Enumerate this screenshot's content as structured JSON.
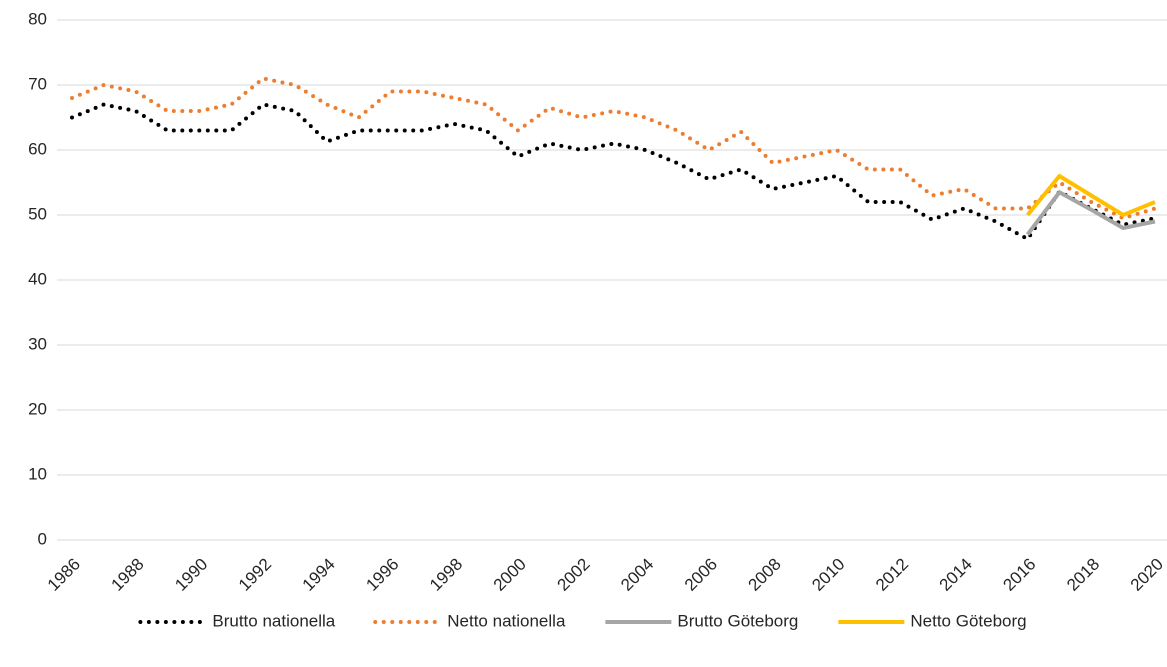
{
  "chart_data": {
    "type": "line",
    "x": [
      1986,
      1987,
      1988,
      1989,
      1990,
      1991,
      1992,
      1993,
      1994,
      1995,
      1996,
      1997,
      1998,
      1999,
      2000,
      2001,
      2002,
      2003,
      2004,
      2005,
      2006,
      2007,
      2008,
      2009,
      2010,
      2011,
      2012,
      2013,
      2014,
      2015,
      2016,
      2017,
      2018,
      2019,
      2020
    ],
    "xlim": [
      1986,
      2020
    ],
    "xticks": [
      1986,
      1988,
      1990,
      1992,
      1994,
      1996,
      1998,
      2000,
      2002,
      2004,
      2006,
      2008,
      2010,
      2012,
      2014,
      2016,
      2018,
      2020
    ],
    "ylim": [
      0,
      80
    ],
    "yticks": [
      0,
      10,
      20,
      30,
      40,
      50,
      60,
      70,
      80
    ],
    "grid": true,
    "legend": "bottom",
    "series": [
      {
        "name": "Brutto nationella",
        "color": "#000000",
        "style": "dotted",
        "values": [
          65,
          67,
          66,
          63,
          63,
          63,
          67,
          66,
          61.3,
          63,
          63,
          63,
          64,
          63,
          59,
          61,
          60,
          61,
          60,
          58,
          55.5,
          57,
          54,
          55,
          56,
          52,
          52,
          49.3,
          51,
          49,
          46.3,
          53.6,
          51,
          48.5,
          49.5
        ]
      },
      {
        "name": "Netto nationella",
        "color": "#ed7d31",
        "style": "dotted",
        "values": [
          68,
          70,
          69,
          66,
          66,
          67,
          71,
          70,
          67,
          65,
          69,
          69,
          68,
          67,
          63,
          66.5,
          65,
          66,
          65,
          63,
          60,
          62.8,
          58,
          59,
          60,
          57,
          57,
          53,
          54,
          51,
          51,
          55,
          52,
          49.5,
          51
        ]
      },
      {
        "name": "Brutto Göteborg",
        "color": "#a5a5a5",
        "style": "solid",
        "values": [
          null,
          null,
          null,
          null,
          null,
          null,
          null,
          null,
          null,
          null,
          null,
          null,
          null,
          null,
          null,
          null,
          null,
          null,
          null,
          null,
          null,
          null,
          null,
          null,
          null,
          null,
          null,
          null,
          null,
          null,
          47,
          53.5,
          50.8,
          48,
          49
        ]
      },
      {
        "name": "Netto Göteborg",
        "color": "#ffc000",
        "style": "solid",
        "values": [
          null,
          null,
          null,
          null,
          null,
          null,
          null,
          null,
          null,
          null,
          null,
          null,
          null,
          null,
          null,
          null,
          null,
          null,
          null,
          null,
          null,
          null,
          null,
          null,
          null,
          null,
          null,
          null,
          null,
          null,
          50,
          56,
          53,
          50,
          52
        ]
      }
    ]
  }
}
